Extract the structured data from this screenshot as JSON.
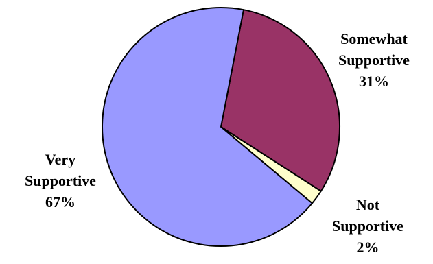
{
  "chart_data": {
    "type": "pie",
    "title": "",
    "slices": [
      {
        "name_lines": [
          "Somewhat",
          "Supportive"
        ],
        "value": 31,
        "value_label": "31%",
        "color": "#993366"
      },
      {
        "name_lines": [
          "Not",
          "Supportive"
        ],
        "value": 2,
        "value_label": "2%",
        "color": "#FFFFCC"
      },
      {
        "name_lines": [
          "Very",
          "Supportive"
        ],
        "value": 67,
        "value_label": "67%",
        "color": "#9999FF"
      }
    ],
    "start_angle_deg": 11,
    "direction": "clockwise",
    "outline_color": "#000000",
    "legend": "none"
  }
}
